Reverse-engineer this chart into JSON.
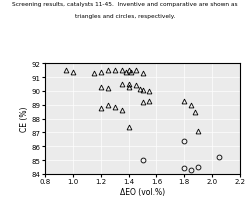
{
  "title_line1": "Screening results, catalysts 11-45.  Inventive and comparative are shown as",
  "title_line2": "triangles and circles, respectively.",
  "xlabel": "ΔEO (vol.%)",
  "ylabel": "CE (%)",
  "xlim": [
    0.8,
    2.2
  ],
  "ylim": [
    84,
    92
  ],
  "xticks": [
    0.8,
    1.0,
    1.2,
    1.4,
    1.6,
    1.8,
    2.0,
    2.2
  ],
  "yticks": [
    84,
    85,
    86,
    87,
    88,
    89,
    90,
    91,
    92
  ],
  "triangles": [
    [
      0.95,
      91.5
    ],
    [
      1.0,
      91.4
    ],
    [
      1.15,
      91.3
    ],
    [
      1.2,
      91.4
    ],
    [
      1.25,
      91.5
    ],
    [
      1.3,
      91.5
    ],
    [
      1.35,
      91.5
    ],
    [
      1.38,
      91.4
    ],
    [
      1.4,
      91.5
    ],
    [
      1.42,
      91.35
    ],
    [
      1.45,
      91.5
    ],
    [
      1.5,
      91.3
    ],
    [
      1.2,
      90.3
    ],
    [
      1.25,
      90.2
    ],
    [
      1.35,
      90.5
    ],
    [
      1.4,
      90.5
    ],
    [
      1.4,
      90.3
    ],
    [
      1.45,
      90.4
    ],
    [
      1.48,
      90.15
    ],
    [
      1.5,
      90.05
    ],
    [
      1.55,
      90.0
    ],
    [
      1.2,
      88.8
    ],
    [
      1.25,
      89.0
    ],
    [
      1.3,
      88.85
    ],
    [
      1.35,
      88.65
    ],
    [
      1.4,
      87.4
    ],
    [
      1.5,
      89.2
    ],
    [
      1.55,
      89.3
    ],
    [
      1.8,
      89.3
    ],
    [
      1.85,
      89.0
    ],
    [
      1.88,
      88.5
    ],
    [
      1.9,
      87.1
    ]
  ],
  "circles": [
    [
      1.5,
      85.0
    ],
    [
      1.8,
      84.4
    ],
    [
      1.85,
      84.3
    ],
    [
      1.9,
      84.5
    ],
    [
      1.8,
      86.4
    ],
    [
      2.05,
      85.2
    ]
  ],
  "marker_size": 3.5,
  "marker_color": "black",
  "grid": true,
  "bg_color": "#ebebeb",
  "fig_bg": "#ffffff"
}
